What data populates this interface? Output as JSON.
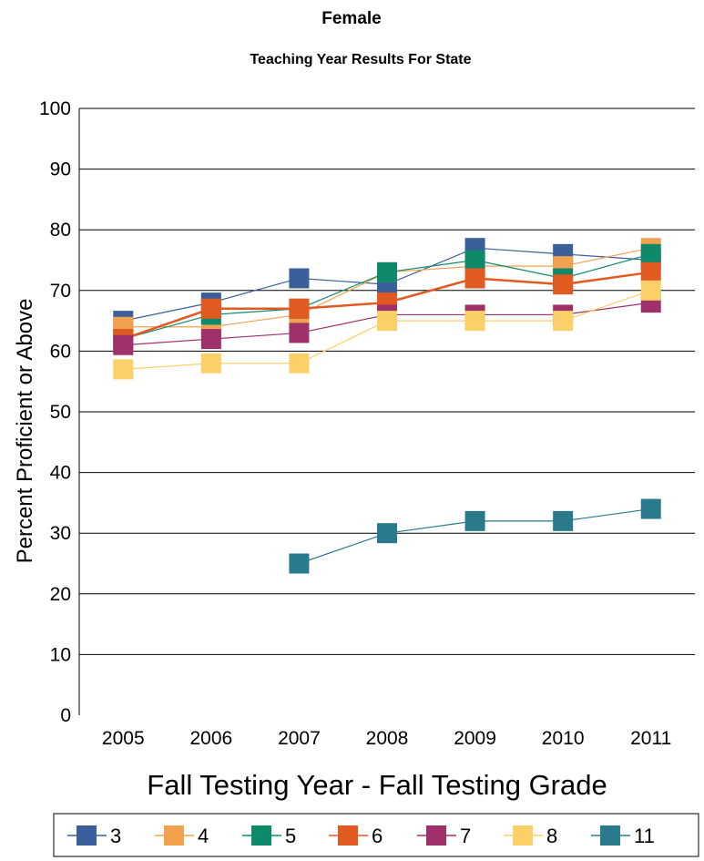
{
  "chart_data": {
    "type": "line",
    "title": "Female",
    "subtitle": "Teaching Year Results For State",
    "xlabel": "Fall Testing Year  - Fall Testing Grade",
    "ylabel": "Percent Proficient or Above",
    "ylim": [
      0,
      100
    ],
    "yticks": [
      "0",
      "10",
      "20",
      "30",
      "40",
      "50",
      "60",
      "70",
      "80",
      "90",
      "100"
    ],
    "categories": [
      "2005",
      "2006",
      "2007",
      "2008",
      "2009",
      "2010",
      "2011"
    ],
    "grid": true,
    "legend_position": "bottom",
    "series": [
      {
        "name": "3",
        "color": "#3a5f9b",
        "values": [
          65,
          68,
          72,
          71,
          77,
          76,
          75
        ]
      },
      {
        "name": "4",
        "color": "#f2a24f",
        "values": [
          64,
          64,
          66,
          73,
          74,
          74,
          77
        ]
      },
      {
        "name": "5",
        "color": "#0e8a6a",
        "values": [
          62,
          66,
          67,
          73,
          75,
          72,
          76
        ]
      },
      {
        "name": "6",
        "color": "#e05a22",
        "values": [
          62,
          67,
          67,
          68,
          72,
          71,
          73
        ]
      },
      {
        "name": "7",
        "color": "#a0306a",
        "values": [
          61,
          62,
          63,
          66,
          66,
          66,
          68
        ]
      },
      {
        "name": "8",
        "color": "#fcd068",
        "values": [
          57,
          58,
          58,
          65,
          65,
          65,
          70
        ]
      },
      {
        "name": "11",
        "color": "#2a7a8e",
        "values": [
          null,
          null,
          25,
          30,
          32,
          32,
          34
        ]
      }
    ]
  }
}
